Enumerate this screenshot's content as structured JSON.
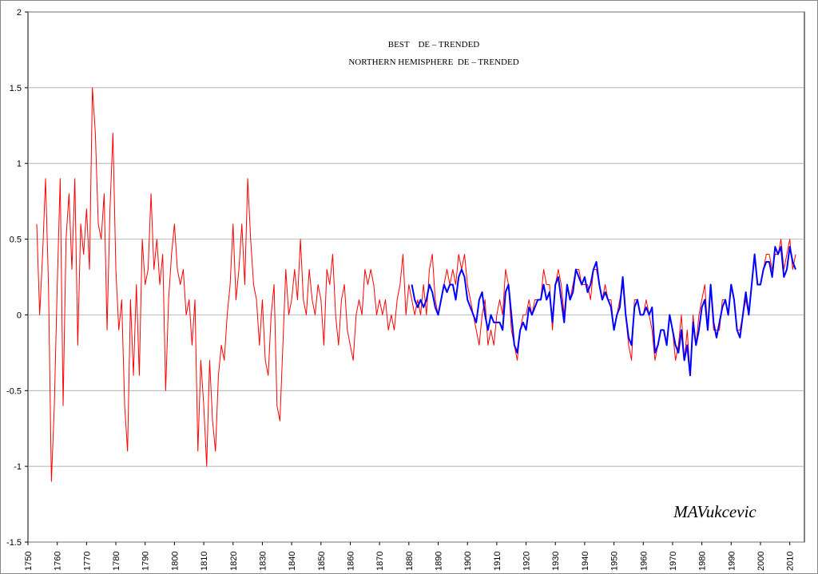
{
  "chart_data": {
    "type": "line",
    "annotation": "MAVukcevic",
    "x": [
      1753,
      1754,
      1755,
      1756,
      1757,
      1758,
      1759,
      1760,
      1761,
      1762,
      1763,
      1764,
      1765,
      1766,
      1767,
      1768,
      1769,
      1770,
      1771,
      1772,
      1773,
      1774,
      1775,
      1776,
      1777,
      1778,
      1779,
      1780,
      1781,
      1782,
      1783,
      1784,
      1785,
      1786,
      1787,
      1788,
      1789,
      1790,
      1791,
      1792,
      1793,
      1794,
      1795,
      1796,
      1797,
      1798,
      1799,
      1800,
      1801,
      1802,
      1803,
      1804,
      1805,
      1806,
      1807,
      1808,
      1809,
      1810,
      1811,
      1812,
      1813,
      1814,
      1815,
      1816,
      1817,
      1818,
      1819,
      1820,
      1821,
      1822,
      1823,
      1824,
      1825,
      1826,
      1827,
      1828,
      1829,
      1830,
      1831,
      1832,
      1833,
      1834,
      1835,
      1836,
      1837,
      1838,
      1839,
      1840,
      1841,
      1842,
      1843,
      1844,
      1845,
      1846,
      1847,
      1848,
      1849,
      1850,
      1851,
      1852,
      1853,
      1854,
      1855,
      1856,
      1857,
      1858,
      1859,
      1860,
      1861,
      1862,
      1863,
      1864,
      1865,
      1866,
      1867,
      1868,
      1869,
      1870,
      1871,
      1872,
      1873,
      1874,
      1875,
      1876,
      1877,
      1878,
      1879,
      1880,
      1881,
      1882,
      1883,
      1884,
      1885,
      1886,
      1887,
      1888,
      1889,
      1890,
      1891,
      1892,
      1893,
      1894,
      1895,
      1896,
      1897,
      1898,
      1899,
      1900,
      1901,
      1902,
      1903,
      1904,
      1905,
      1906,
      1907,
      1908,
      1909,
      1910,
      1911,
      1912,
      1913,
      1914,
      1915,
      1916,
      1917,
      1918,
      1919,
      1920,
      1921,
      1922,
      1923,
      1924,
      1925,
      1926,
      1927,
      1928,
      1929,
      1930,
      1931,
      1932,
      1933,
      1934,
      1935,
      1936,
      1937,
      1938,
      1939,
      1940,
      1941,
      1942,
      1943,
      1944,
      1945,
      1946,
      1947,
      1948,
      1949,
      1950,
      1951,
      1952,
      1953,
      1954,
      1955,
      1956,
      1957,
      1958,
      1959,
      1960,
      1961,
      1962,
      1963,
      1964,
      1965,
      1966,
      1967,
      1968,
      1969,
      1970,
      1971,
      1972,
      1973,
      1974,
      1975,
      1976,
      1977,
      1978,
      1979,
      1980,
      1981,
      1982,
      1983,
      1984,
      1985,
      1986,
      1987,
      1988,
      1989,
      1990,
      1991,
      1992,
      1993,
      1994,
      1995,
      1996,
      1997,
      1998,
      1999,
      2000,
      2001,
      2002,
      2003,
      2004,
      2005,
      2006,
      2007,
      2008,
      2009,
      2010,
      2011,
      2012
    ],
    "series": [
      {
        "name": "BEST    DE – TRENDED",
        "color": "#ff0000",
        "values": [
          0.6,
          0.0,
          0.4,
          0.9,
          0.2,
          -1.1,
          -0.6,
          0.2,
          0.9,
          -0.6,
          0.5,
          0.8,
          0.3,
          0.9,
          -0.2,
          0.6,
          0.4,
          0.7,
          0.3,
          1.5,
          1.2,
          0.6,
          0.5,
          0.8,
          -0.1,
          0.7,
          1.2,
          0.3,
          -0.1,
          0.1,
          -0.6,
          -0.9,
          0.1,
          -0.4,
          0.2,
          -0.4,
          0.5,
          0.2,
          0.3,
          0.8,
          0.3,
          0.5,
          0.2,
          0.4,
          -0.5,
          0.1,
          0.4,
          0.6,
          0.3,
          0.2,
          0.3,
          0.0,
          0.1,
          -0.2,
          0.1,
          -0.9,
          -0.3,
          -0.6,
          -1.0,
          -0.3,
          -0.7,
          -0.9,
          -0.4,
          -0.2,
          -0.3,
          0.0,
          0.2,
          0.6,
          0.1,
          0.3,
          0.6,
          0.2,
          0.9,
          0.5,
          0.2,
          0.1,
          -0.2,
          0.1,
          -0.3,
          -0.4,
          0.0,
          0.2,
          -0.6,
          -0.7,
          -0.2,
          0.3,
          0.0,
          0.1,
          0.3,
          0.1,
          0.5,
          0.1,
          0.0,
          0.3,
          0.1,
          0.0,
          0.2,
          0.1,
          -0.2,
          0.3,
          0.2,
          0.4,
          0.0,
          -0.2,
          0.1,
          0.2,
          -0.1,
          -0.2,
          -0.3,
          0.0,
          0.1,
          0.0,
          0.3,
          0.2,
          0.3,
          0.2,
          0.0,
          0.1,
          0.0,
          0.1,
          -0.1,
          0.0,
          -0.1,
          0.1,
          0.2,
          0.4,
          0.0,
          0.2,
          0.1,
          0.0,
          0.1,
          0.0,
          0.2,
          0.0,
          0.3,
          0.4,
          0.1,
          0.0,
          0.1,
          0.2,
          0.3,
          0.2,
          0.3,
          0.2,
          0.4,
          0.3,
          0.4,
          0.2,
          0.1,
          0.0,
          -0.1,
          -0.2,
          0.0,
          0.1,
          -0.2,
          -0.1,
          -0.2,
          0.0,
          0.1,
          0.0,
          0.3,
          0.2,
          -0.1,
          -0.2,
          -0.3,
          -0.1,
          0.0,
          0.0,
          0.1,
          0.0,
          0.1,
          0.1,
          0.1,
          0.3,
          0.2,
          0.2,
          -0.1,
          0.2,
          0.3,
          0.2,
          0.0,
          0.2,
          0.1,
          0.2,
          0.3,
          0.3,
          0.2,
          0.2,
          0.2,
          0.1,
          0.3,
          0.3,
          0.2,
          0.1,
          0.2,
          0.1,
          0.1,
          -0.1,
          0.0,
          0.1,
          0.2,
          0.0,
          -0.2,
          -0.3,
          0.1,
          0.1,
          0.0,
          0.0,
          0.1,
          0.0,
          -0.1,
          -0.3,
          -0.2,
          -0.1,
          -0.1,
          -0.2,
          0.0,
          -0.1,
          -0.3,
          -0.2,
          0.0,
          -0.3,
          -0.1,
          -0.4,
          0.0,
          -0.2,
          0.0,
          0.1,
          0.2,
          -0.1,
          0.2,
          -0.1,
          -0.1,
          -0.1,
          0.1,
          0.1,
          0.0,
          0.2,
          0.1,
          -0.1,
          -0.1,
          0.0,
          0.1,
          0.0,
          0.2,
          0.4,
          0.2,
          0.2,
          0.3,
          0.4,
          0.4,
          0.3,
          0.4,
          0.4,
          0.5,
          0.3,
          0.4,
          0.5,
          0.3,
          0.4
        ]
      },
      {
        "name": "NORTHERN HEMISPHERE  DE – TRENDED",
        "color": "#0000ff",
        "values": [
          null,
          null,
          null,
          null,
          null,
          null,
          null,
          null,
          null,
          null,
          null,
          null,
          null,
          null,
          null,
          null,
          null,
          null,
          null,
          null,
          null,
          null,
          null,
          null,
          null,
          null,
          null,
          null,
          null,
          null,
          null,
          null,
          null,
          null,
          null,
          null,
          null,
          null,
          null,
          null,
          null,
          null,
          null,
          null,
          null,
          null,
          null,
          null,
          null,
          null,
          null,
          null,
          null,
          null,
          null,
          null,
          null,
          null,
          null,
          null,
          null,
          null,
          null,
          null,
          null,
          null,
          null,
          null,
          null,
          null,
          null,
          null,
          null,
          null,
          null,
          null,
          null,
          null,
          null,
          null,
          null,
          null,
          null,
          null,
          null,
          null,
          null,
          null,
          null,
          null,
          null,
          null,
          null,
          null,
          null,
          null,
          null,
          null,
          null,
          null,
          null,
          null,
          null,
          null,
          null,
          null,
          null,
          null,
          null,
          null,
          null,
          null,
          null,
          null,
          null,
          null,
          null,
          null,
          null,
          null,
          null,
          null,
          null,
          null,
          null,
          null,
          null,
          null,
          0.2,
          0.1,
          0.05,
          0.1,
          0.05,
          0.1,
          0.2,
          0.15,
          0.05,
          0.0,
          0.1,
          0.2,
          0.15,
          0.2,
          0.2,
          0.1,
          0.25,
          0.3,
          0.25,
          0.1,
          0.05,
          0.0,
          -0.05,
          0.1,
          0.15,
          0.0,
          -0.1,
          0.0,
          -0.05,
          -0.05,
          -0.05,
          -0.1,
          0.15,
          0.2,
          0.0,
          -0.2,
          -0.25,
          -0.1,
          -0.05,
          -0.1,
          0.05,
          0.0,
          0.05,
          0.1,
          0.1,
          0.2,
          0.1,
          0.15,
          -0.05,
          0.2,
          0.25,
          0.1,
          -0.05,
          0.2,
          0.1,
          0.15,
          0.3,
          0.25,
          0.2,
          0.25,
          0.15,
          0.2,
          0.3,
          0.35,
          0.2,
          0.1,
          0.15,
          0.1,
          0.05,
          -0.1,
          0.0,
          0.05,
          0.25,
          0.0,
          -0.15,
          -0.2,
          0.05,
          0.1,
          0.0,
          0.0,
          0.05,
          0.0,
          0.05,
          -0.25,
          -0.2,
          -0.1,
          -0.1,
          -0.2,
          0.0,
          -0.1,
          -0.2,
          -0.25,
          -0.1,
          -0.3,
          -0.2,
          -0.4,
          -0.05,
          -0.2,
          -0.1,
          0.05,
          0.1,
          -0.1,
          0.2,
          -0.05,
          -0.15,
          -0.05,
          0.05,
          0.1,
          0.0,
          0.2,
          0.1,
          -0.1,
          -0.15,
          0.0,
          0.15,
          0.0,
          0.2,
          0.4,
          0.2,
          0.2,
          0.3,
          0.35,
          0.35,
          0.25,
          0.45,
          0.4,
          0.45,
          0.25,
          0.3,
          0.45,
          0.35,
          0.3
        ]
      }
    ],
    "xlim": [
      1750,
      2015
    ],
    "xticks": [
      1750,
      1760,
      1770,
      1780,
      1790,
      1800,
      1810,
      1820,
      1830,
      1840,
      1850,
      1860,
      1870,
      1880,
      1890,
      1900,
      1910,
      1920,
      1930,
      1940,
      1950,
      1960,
      1970,
      1980,
      1990,
      2000,
      2010
    ],
    "ylim": [
      -1.5,
      2
    ],
    "yticks": [
      -1.5,
      -1,
      -0.5,
      0,
      0.5,
      1,
      1.5,
      2
    ],
    "grid": true
  }
}
